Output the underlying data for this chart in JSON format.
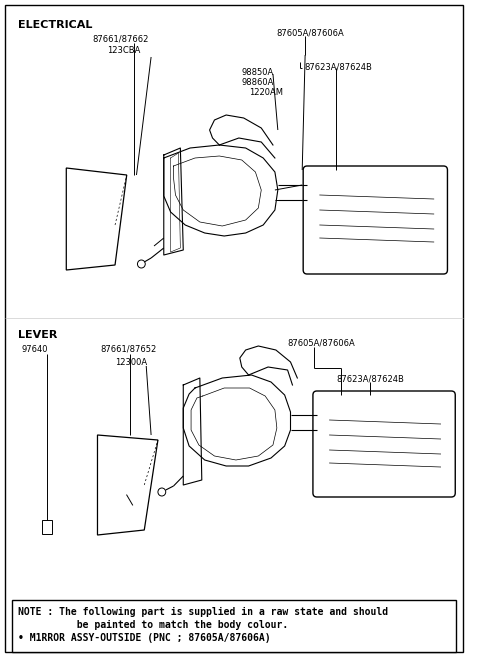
{
  "background_color": "#ffffff",
  "border_color": "#000000",
  "font_size_section": 8,
  "font_size_label": 6,
  "font_size_note": 7,
  "note_line1": "NOTE : The following part is supplied in a raw state and should",
  "note_line2": "          be painted to match the body colour.",
  "note_line3": "• M1RROR ASSY-OUTSIDE (PNC ; 87605A/87606A)",
  "elec_label_8766": "87661/87662",
  "elec_label_123": "123CBA",
  "elec_label_87605": "87605A/87606A",
  "elec_label_98850": "98850A",
  "elec_label_98860": "98860A",
  "elec_label_1220": "1220AM",
  "elec_label_87623": "87623A/87624B",
  "lever_label_97640": "97640",
  "lever_label_8766": "87661/87652",
  "lever_label_12300": "12300A",
  "lever_label_87605": "87605A/87606A",
  "lever_label_87623": "87623A/87624B"
}
